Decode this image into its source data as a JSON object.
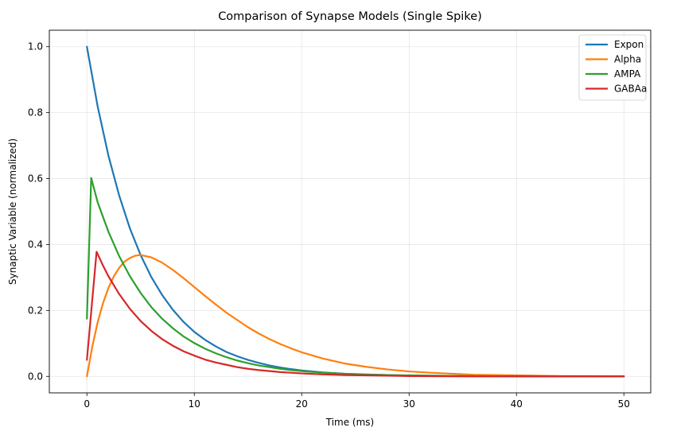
{
  "chart_data": {
    "type": "line",
    "title": "Comparison of Synapse Models (Single Spike)",
    "xlabel": "Time (ms)",
    "ylabel": "Synaptic Variable (normalized)",
    "xlim": [
      -3.5,
      52.5
    ],
    "ylim": [
      -0.05,
      1.05
    ],
    "xticks": [
      0,
      10,
      20,
      30,
      40,
      50
    ],
    "yticks": [
      0.0,
      0.2,
      0.4,
      0.6,
      0.8,
      1.0
    ],
    "xtick_labels": [
      "0",
      "10",
      "20",
      "30",
      "40",
      "50"
    ],
    "ytick_labels": [
      "0.0",
      "0.2",
      "0.4",
      "0.6",
      "0.8",
      "1.0"
    ],
    "grid": true,
    "legend_position": "top-right",
    "series": [
      {
        "name": "Expon",
        "color": "#1f77b4",
        "points": [
          [
            0,
            1.0
          ],
          [
            1,
            0.819
          ],
          [
            2,
            0.67
          ],
          [
            3,
            0.549
          ],
          [
            4,
            0.449
          ],
          [
            5,
            0.368
          ],
          [
            6,
            0.301
          ],
          [
            7,
            0.247
          ],
          [
            8,
            0.202
          ],
          [
            9,
            0.165
          ],
          [
            10,
            0.135
          ],
          [
            11,
            0.111
          ],
          [
            12,
            0.091
          ],
          [
            13,
            0.074
          ],
          [
            14,
            0.061
          ],
          [
            15,
            0.05
          ],
          [
            16,
            0.041
          ],
          [
            17,
            0.033
          ],
          [
            18,
            0.027
          ],
          [
            19,
            0.022
          ],
          [
            20,
            0.018
          ],
          [
            22,
            0.012
          ],
          [
            24,
            0.008
          ],
          [
            26,
            0.006
          ],
          [
            28,
            0.004
          ],
          [
            30,
            0.002
          ],
          [
            35,
            0.001
          ],
          [
            40,
            0.0
          ],
          [
            45,
            0.0
          ],
          [
            50,
            0.0
          ]
        ]
      },
      {
        "name": "Alpha",
        "color": "#ff7f0e",
        "points": [
          [
            0,
            0.0
          ],
          [
            0.5,
            0.09
          ],
          [
            1,
            0.164
          ],
          [
            1.5,
            0.222
          ],
          [
            2,
            0.268
          ],
          [
            2.5,
            0.303
          ],
          [
            3,
            0.329
          ],
          [
            3.5,
            0.348
          ],
          [
            4,
            0.359
          ],
          [
            4.5,
            0.366
          ],
          [
            5,
            0.368
          ],
          [
            6,
            0.361
          ],
          [
            7,
            0.345
          ],
          [
            8,
            0.323
          ],
          [
            9,
            0.298
          ],
          [
            10,
            0.271
          ],
          [
            11,
            0.244
          ],
          [
            12,
            0.218
          ],
          [
            13,
            0.193
          ],
          [
            14,
            0.171
          ],
          [
            15,
            0.149
          ],
          [
            16,
            0.13
          ],
          [
            17,
            0.113
          ],
          [
            18,
            0.098
          ],
          [
            19,
            0.085
          ],
          [
            20,
            0.073
          ],
          [
            22,
            0.054
          ],
          [
            24,
            0.039
          ],
          [
            26,
            0.029
          ],
          [
            28,
            0.021
          ],
          [
            30,
            0.015
          ],
          [
            32,
            0.011
          ],
          [
            34,
            0.008
          ],
          [
            36,
            0.005
          ],
          [
            38,
            0.004
          ],
          [
            40,
            0.003
          ],
          [
            44,
            0.001
          ],
          [
            50,
            0.0
          ]
        ]
      },
      {
        "name": "AMPA",
        "color": "#2ca02c",
        "points": [
          [
            0,
            0.175
          ],
          [
            0.4,
            0.602
          ],
          [
            1,
            0.528
          ],
          [
            2,
            0.439
          ],
          [
            3,
            0.365
          ],
          [
            4,
            0.304
          ],
          [
            5,
            0.253
          ],
          [
            6,
            0.21
          ],
          [
            7,
            0.175
          ],
          [
            8,
            0.146
          ],
          [
            9,
            0.121
          ],
          [
            10,
            0.101
          ],
          [
            11,
            0.084
          ],
          [
            12,
            0.07
          ],
          [
            13,
            0.058
          ],
          [
            14,
            0.048
          ],
          [
            15,
            0.04
          ],
          [
            16,
            0.033
          ],
          [
            17,
            0.028
          ],
          [
            18,
            0.023
          ],
          [
            19,
            0.019
          ],
          [
            20,
            0.016
          ],
          [
            22,
            0.011
          ],
          [
            24,
            0.008
          ],
          [
            26,
            0.005
          ],
          [
            28,
            0.004
          ],
          [
            30,
            0.003
          ],
          [
            35,
            0.001
          ],
          [
            40,
            0.0
          ],
          [
            50,
            0.0
          ]
        ]
      },
      {
        "name": "GABAa",
        "color": "#d62728",
        "points": [
          [
            0,
            0.05
          ],
          [
            0.9,
            0.378
          ],
          [
            1.5,
            0.336
          ],
          [
            2,
            0.304
          ],
          [
            3,
            0.25
          ],
          [
            4,
            0.205
          ],
          [
            5,
            0.168
          ],
          [
            6,
            0.138
          ],
          [
            7,
            0.113
          ],
          [
            8,
            0.093
          ],
          [
            9,
            0.076
          ],
          [
            10,
            0.063
          ],
          [
            11,
            0.051
          ],
          [
            12,
            0.042
          ],
          [
            13,
            0.035
          ],
          [
            14,
            0.028
          ],
          [
            15,
            0.023
          ],
          [
            16,
            0.019
          ],
          [
            17,
            0.016
          ],
          [
            18,
            0.013
          ],
          [
            19,
            0.011
          ],
          [
            20,
            0.009
          ],
          [
            22,
            0.006
          ],
          [
            24,
            0.004
          ],
          [
            26,
            0.003
          ],
          [
            28,
            0.002
          ],
          [
            30,
            0.001
          ],
          [
            35,
            0.0
          ],
          [
            50,
            0.0
          ]
        ]
      }
    ]
  }
}
